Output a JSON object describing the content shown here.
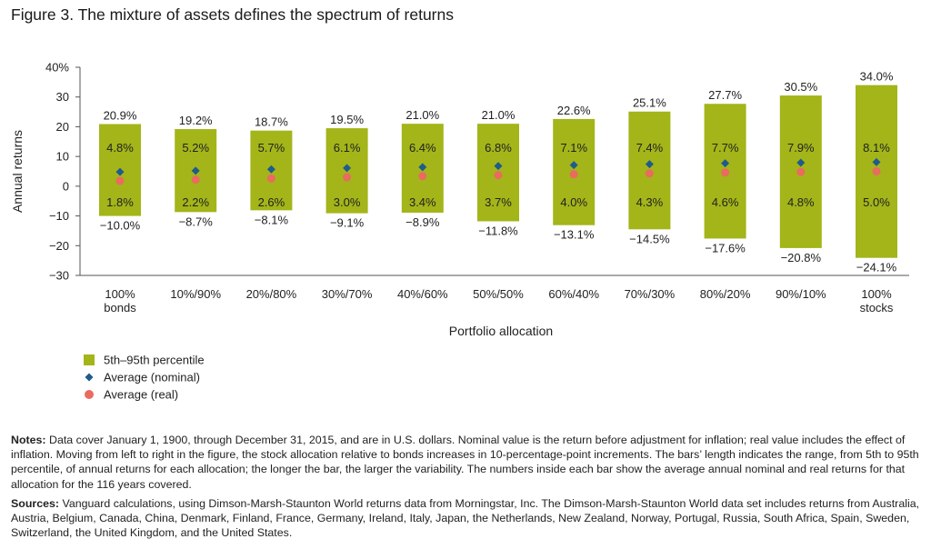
{
  "figure": {
    "title": "Figure 3. The mixture of assets defines the spectrum of returns"
  },
  "colors": {
    "bar": "#a3b519",
    "nominal": "#1f5b8c",
    "real": "#ea6b5f",
    "axis": "#555555"
  },
  "chart_data": {
    "type": "bar",
    "subtype": "floating-range-with-markers",
    "xlabel": "Portfolio allocation",
    "ylabel": "Annual returns",
    "ylim": [
      -30,
      40
    ],
    "yticks": [
      -30,
      -20,
      -10,
      0,
      10,
      20,
      30,
      40
    ],
    "ytick_labels": [
      "−30",
      "−20",
      "−10",
      "0",
      "10",
      "20",
      "30",
      "40%"
    ],
    "categories": [
      [
        "100%",
        "bonds"
      ],
      [
        "10%/90%"
      ],
      [
        "20%/80%"
      ],
      [
        "30%/70%"
      ],
      [
        "40%/60%"
      ],
      [
        "50%/50%"
      ],
      [
        "60%/40%"
      ],
      [
        "70%/30%"
      ],
      [
        "80%/20%"
      ],
      [
        "90%/10%"
      ],
      [
        "100%",
        "stocks"
      ]
    ],
    "series": [
      {
        "name": "5th–95th percentile",
        "kind": "range",
        "high": [
          20.9,
          19.2,
          18.7,
          19.5,
          21.0,
          21.0,
          22.6,
          25.1,
          27.7,
          30.5,
          34.0
        ],
        "low": [
          -10.0,
          -8.7,
          -8.1,
          -9.1,
          -8.9,
          -11.8,
          -13.1,
          -14.5,
          -17.6,
          -20.8,
          -24.1
        ],
        "high_labels": [
          "20.9%",
          "19.2%",
          "18.7%",
          "19.5%",
          "21.0%",
          "21.0%",
          "22.6%",
          "25.1%",
          "27.7%",
          "30.5%",
          "34.0%"
        ],
        "low_labels": [
          "−10.0%",
          "−8.7%",
          "−8.1%",
          "−9.1%",
          "−8.9%",
          "−11.8%",
          "−13.1%",
          "−14.5%",
          "−17.6%",
          "−20.8%",
          "−24.1%"
        ]
      },
      {
        "name": "Average (nominal)",
        "kind": "diamond",
        "values": [
          4.8,
          5.2,
          5.7,
          6.1,
          6.4,
          6.8,
          7.1,
          7.4,
          7.7,
          7.9,
          8.1
        ],
        "labels": [
          "4.8%",
          "5.2%",
          "5.7%",
          "6.1%",
          "6.4%",
          "6.8%",
          "7.1%",
          "7.4%",
          "7.7%",
          "7.9%",
          "8.1%"
        ]
      },
      {
        "name": "Average (real)",
        "kind": "circle",
        "values": [
          1.8,
          2.2,
          2.6,
          3.0,
          3.4,
          3.7,
          4.0,
          4.3,
          4.6,
          4.8,
          5.0
        ],
        "labels": [
          "1.8%",
          "2.2%",
          "2.6%",
          "3.0%",
          "3.4%",
          "3.7%",
          "4.0%",
          "4.3%",
          "4.6%",
          "4.8%",
          "5.0%"
        ]
      }
    ],
    "legend": [
      "5th–95th percentile",
      "Average (nominal)",
      "Average (real)"
    ],
    "legend_position": "bottom-left"
  },
  "notes": {
    "notes_label": "Notes:",
    "notes_text": " Data cover January 1, 1900, through December 31, 2015, and are in U.S. dollars. Nominal value is the return before adjustment for inflation; real value includes the effect of inflation. Moving from left to right in the figure, the stock allocation relative to bonds increases in 10-percentage-point increments. The bars’ length indicates the range, from 5th to 95th percentile, of annual returns for each allocation; the longer the bar, the larger the variability. The numbers inside each bar show the average annual nominal and real returns for that allocation for the 116 years covered.",
    "sources_label": "Sources:",
    "sources_text": " Vanguard calculations, using Dimson-Marsh-Staunton World returns data from Morningstar, Inc. The Dimson-Marsh-Staunton World data set includes returns from Australia, Austria, Belgium, Canada, China, Denmark, Finland, France, Germany, Ireland, Italy, Japan, the Netherlands, New Zealand, Norway, Portugal, Russia, South Africa, Spain, Sweden, Switzerland, the United Kingdom, and the United States."
  }
}
